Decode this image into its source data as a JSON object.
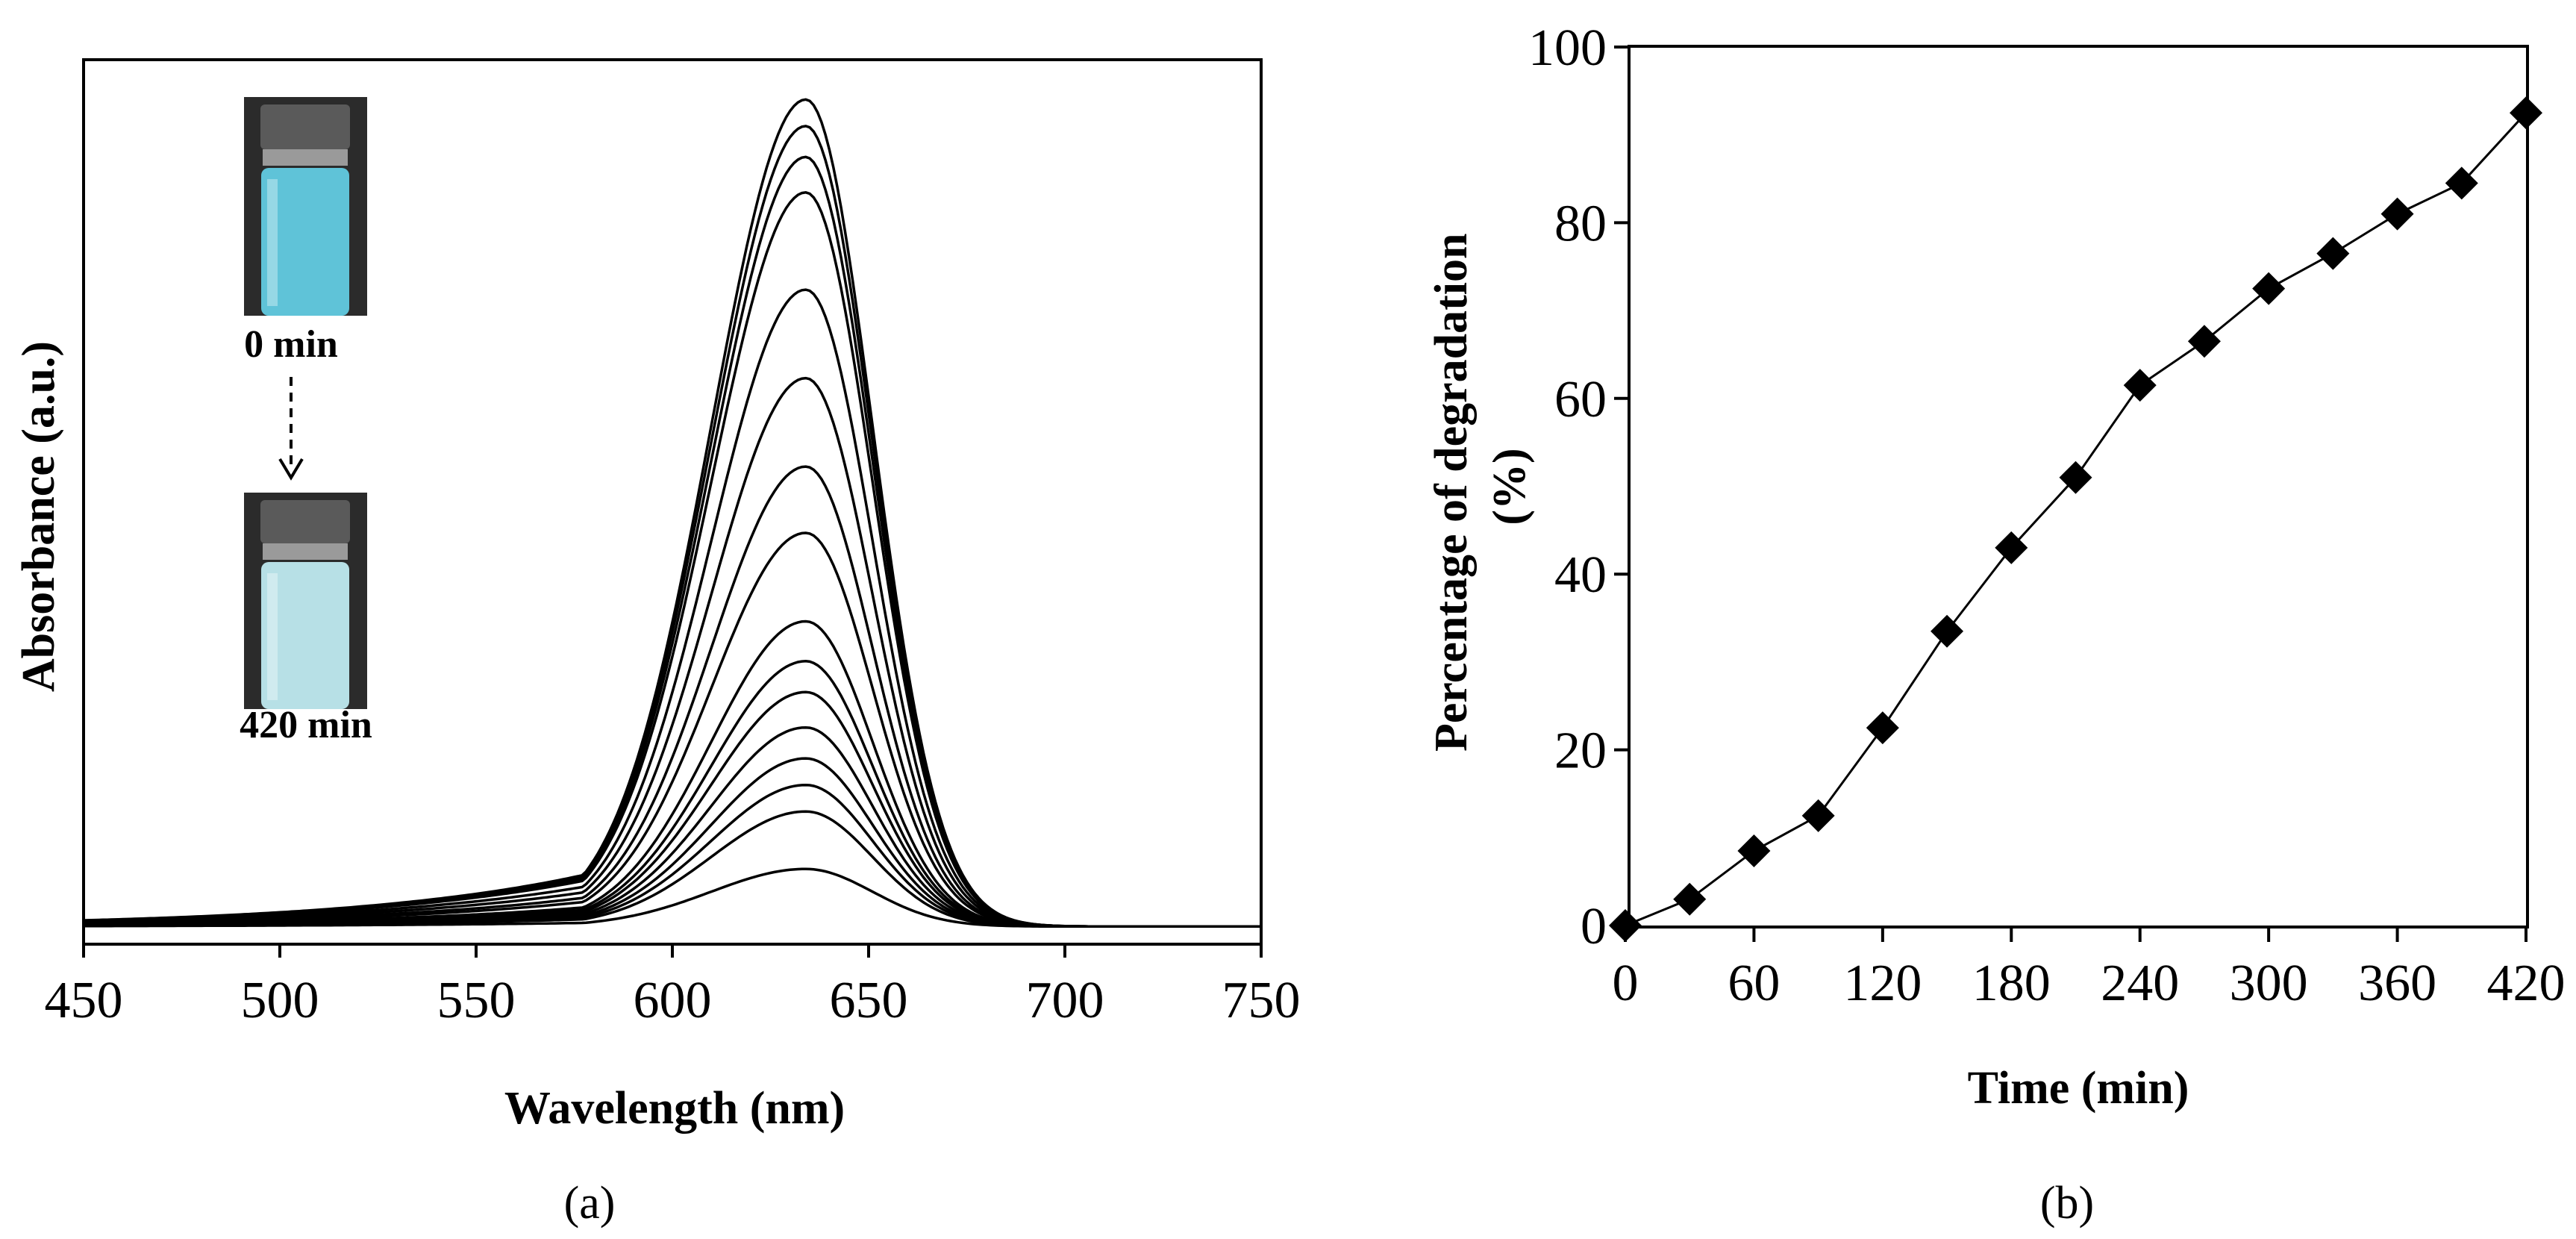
{
  "chart_data": [
    {
      "panel": "a",
      "type": "line",
      "title": "",
      "xlabel": "Wavelength (nm)",
      "ylabel": "Absorbance (a.u.)",
      "xlim": [
        450,
        750
      ],
      "ylim": [
        0,
        1.0
      ],
      "xticks": [
        450,
        500,
        550,
        600,
        650,
        700,
        750
      ],
      "y_ticks_shown": false,
      "peak_wavelength_nm": 634,
      "baseline_absorbance": 0.02,
      "series_peak_absorbances": [
        0.955,
        0.925,
        0.89,
        0.85,
        0.74,
        0.64,
        0.54,
        0.465,
        0.365,
        0.32,
        0.285,
        0.245,
        0.21,
        0.18,
        0.15,
        0.085
      ],
      "series_count": 16,
      "inset": {
        "top_label": "0 min",
        "bottom_label": "420 min",
        "colors": {
          "start_solution": "#5fc3d8",
          "end_solution": "#b7e0e6"
        }
      },
      "panel_label": "(a)"
    },
    {
      "panel": "b",
      "type": "line",
      "title": "",
      "xlabel": "Time (min)",
      "ylabel": "Percentage of degradation (%)",
      "xlim": [
        0,
        420
      ],
      "ylim": [
        0,
        100
      ],
      "xticks": [
        0,
        60,
        120,
        180,
        240,
        300,
        360,
        420
      ],
      "yticks": [
        0,
        20,
        40,
        60,
        80,
        100
      ],
      "x": [
        0,
        30,
        60,
        90,
        120,
        150,
        180,
        210,
        240,
        270,
        300,
        330,
        360,
        390,
        420
      ],
      "y": [
        0,
        3,
        8.5,
        12.5,
        22.5,
        33.5,
        43,
        51,
        61.5,
        66.5,
        72.5,
        76.5,
        81,
        84.5,
        92.5
      ],
      "marker": "diamond",
      "panel_label": "(b)"
    }
  ]
}
